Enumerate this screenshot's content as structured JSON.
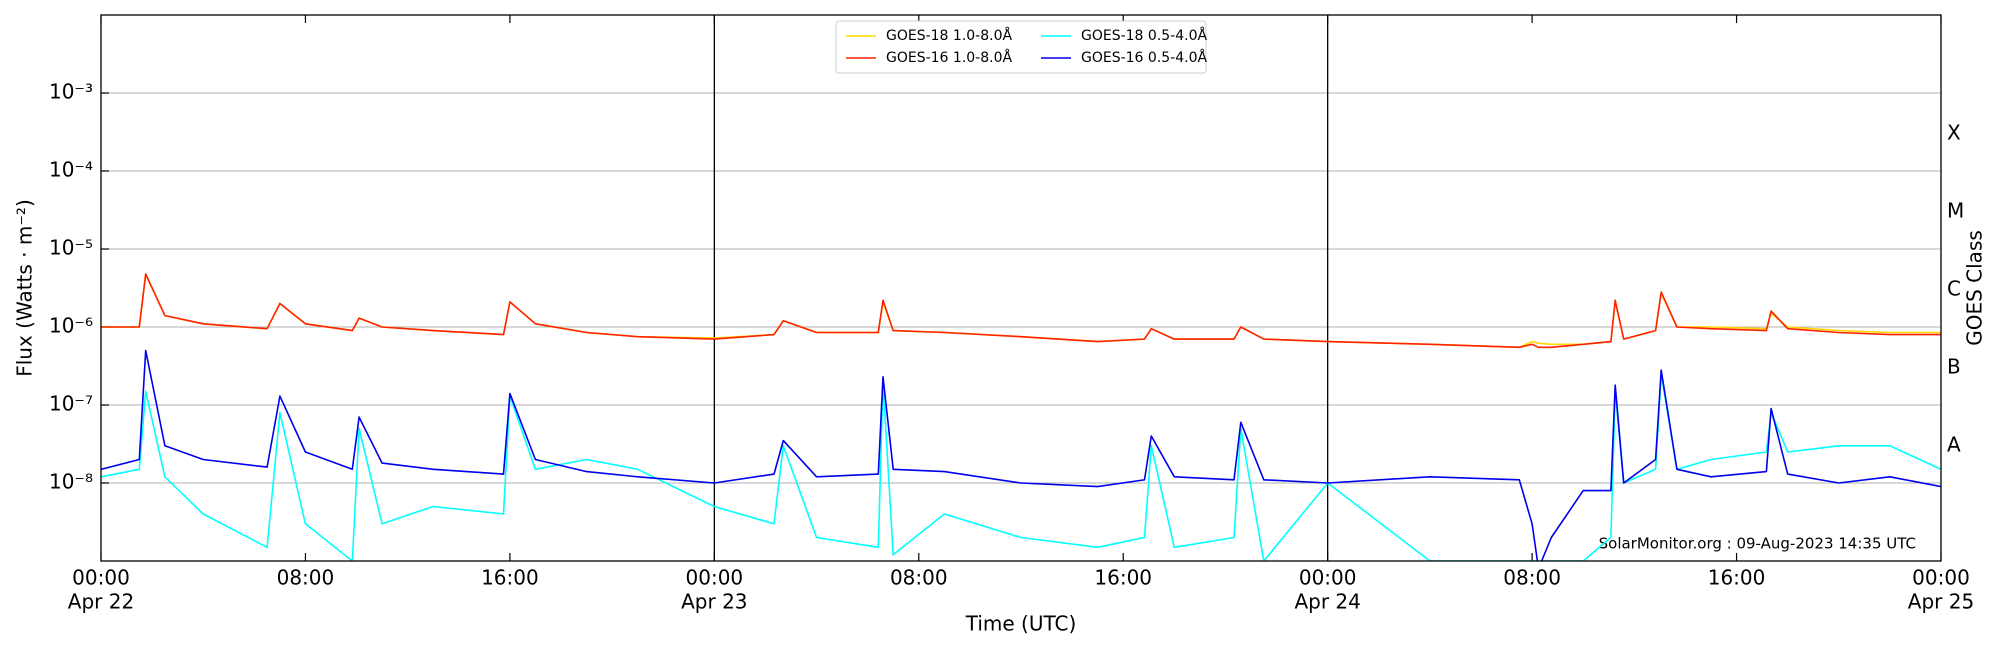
{
  "chart_data": {
    "type": "line",
    "xlabel": "Time (UTC)",
    "ylabel": "Flux (Watts · m⁻²)",
    "y2label": "GOES Class",
    "annotation": "SolarMonitor.org : 09-Aug-2023 14:35 UTC",
    "log_y": true,
    "grid": true,
    "legend_loc": "upper center",
    "xlim": [
      "Apr 22 00:00",
      "Apr 25 00:00"
    ],
    "xticks": [
      {
        "value": "Apr 22 00:00",
        "label": [
          "00:00",
          "Apr 22"
        ]
      },
      {
        "value": "Apr 22 08:00",
        "label": [
          "08:00"
        ]
      },
      {
        "value": "Apr 22 16:00",
        "label": [
          "16:00"
        ]
      },
      {
        "value": "Apr 23 00:00",
        "label": [
          "00:00",
          "Apr 23"
        ]
      },
      {
        "value": "Apr 23 08:00",
        "label": [
          "08:00"
        ]
      },
      {
        "value": "Apr 23 16:00",
        "label": [
          "16:00"
        ]
      },
      {
        "value": "Apr 24 00:00",
        "label": [
          "00:00",
          "Apr 24"
        ]
      },
      {
        "value": "Apr 24 08:00",
        "label": [
          "08:00"
        ]
      },
      {
        "value": "Apr 24 16:00",
        "label": [
          "16:00"
        ]
      },
      {
        "value": "Apr 25 00:00",
        "label": [
          "00:00",
          "Apr 25"
        ]
      }
    ],
    "ylim": [
      1e-09,
      0.01
    ],
    "yticks": [
      {
        "value": 1e-08,
        "label": "10⁻⁸"
      },
      {
        "value": 1e-07,
        "label": "10⁻⁷"
      },
      {
        "value": 1e-06,
        "label": "10⁻⁶"
      },
      {
        "value": 1e-05,
        "label": "10⁻⁵"
      },
      {
        "value": 0.0001,
        "label": "10⁻⁴"
      },
      {
        "value": 0.001,
        "label": "10⁻³"
      }
    ],
    "y2lim": [
      1e-09,
      0.01
    ],
    "y2ticks": [
      {
        "value": 3e-08,
        "label": "A"
      },
      {
        "value": 3e-07,
        "label": "B"
      },
      {
        "value": 3e-06,
        "label": "C"
      },
      {
        "value": 3e-05,
        "label": "M"
      },
      {
        "value": 0.0003,
        "label": "X"
      }
    ],
    "x": [
      "Apr 22 00:00",
      "Apr 22 01:30",
      "Apr 22 01:45",
      "Apr 22 02:30",
      "Apr 22 04:00",
      "Apr 22 06:30",
      "Apr 22 07:00",
      "Apr 22 08:00",
      "Apr 22 09:50",
      "Apr 22 10:06",
      "Apr 22 11:00",
      "Apr 22 13:00",
      "Apr 22 15:45",
      "Apr 22 16:00",
      "Apr 22 17:00",
      "Apr 22 19:00",
      "Apr 22 21:00",
      "Apr 23 00:00",
      "Apr 23 02:20",
      "Apr 23 02:42",
      "Apr 23 04:00",
      "Apr 23 06:25",
      "Apr 23 06:36",
      "Apr 23 07:00",
      "Apr 23 09:00",
      "Apr 23 12:00",
      "Apr 23 15:00",
      "Apr 23 16:50",
      "Apr 23 17:06",
      "Apr 23 18:00",
      "Apr 23 20:20",
      "Apr 23 20:36",
      "Apr 23 21:30",
      "Apr 24 00:00",
      "Apr 24 04:00",
      "Apr 24 07:30",
      "Apr 24 08:00",
      "Apr 24 08:15",
      "Apr 24 08:45",
      "Apr 24 10:00",
      "Apr 24 11:05",
      "Apr 24 11:15",
      "Apr 24 11:35",
      "Apr 24 12:50",
      "Apr 24 13:03",
      "Apr 24 13:40",
      "Apr 24 15:00",
      "Apr 24 17:10",
      "Apr 24 17:21",
      "Apr 24 18:00",
      "Apr 24 20:00",
      "Apr 24 22:00",
      "Apr 25 00:00"
    ],
    "series": [
      {
        "name": "GOES-18 1.0-8.0Å",
        "color": "#ffd700",
        "values": [
          1e-06,
          1e-06,
          4.7e-06,
          1.4e-06,
          1.1e-06,
          9.5e-07,
          2e-06,
          1.1e-06,
          9e-07,
          1.3e-06,
          1e-06,
          9e-07,
          8e-07,
          2.1e-06,
          1.1e-06,
          8.5e-07,
          7.5e-07,
          7.2e-07,
          8e-07,
          1.2e-06,
          8.5e-07,
          8.5e-07,
          2.1e-06,
          9e-07,
          8.5e-07,
          7.5e-07,
          6.5e-07,
          7e-07,
          9.5e-07,
          7e-07,
          7e-07,
          1e-06,
          7e-07,
          6.5e-07,
          6e-07,
          5.5e-07,
          6.5e-07,
          6.2e-07,
          6e-07,
          6e-07,
          6.5e-07,
          2.1e-06,
          7e-07,
          9e-07,
          2.7e-06,
          1e-06,
          1e-06,
          9.5e-07,
          1.5e-06,
          1e-06,
          9e-07,
          8.5e-07,
          8.5e-07
        ]
      },
      {
        "name": "GOES-16 1.0-8.0Å",
        "color": "#ff2200",
        "values": [
          1e-06,
          1e-06,
          4.8e-06,
          1.4e-06,
          1.1e-06,
          9.5e-07,
          2e-06,
          1.1e-06,
          9e-07,
          1.3e-06,
          1e-06,
          9e-07,
          8e-07,
          2.1e-06,
          1.1e-06,
          8.5e-07,
          7.5e-07,
          7e-07,
          8e-07,
          1.2e-06,
          8.5e-07,
          8.5e-07,
          2.2e-06,
          9e-07,
          8.5e-07,
          7.5e-07,
          6.5e-07,
          7e-07,
          9.5e-07,
          7e-07,
          7e-07,
          1e-06,
          7e-07,
          6.5e-07,
          6e-07,
          5.5e-07,
          6e-07,
          5.5e-07,
          5.5e-07,
          6e-07,
          6.5e-07,
          2.2e-06,
          7e-07,
          9e-07,
          2.8e-06,
          1e-06,
          9.5e-07,
          9e-07,
          1.6e-06,
          9.5e-07,
          8.5e-07,
          8e-07,
          8e-07
        ]
      },
      {
        "name": "GOES-18 0.5-4.0Å",
        "color": "#00ffff",
        "values": [
          1.2e-08,
          1.5e-08,
          1.5e-07,
          1.2e-08,
          4e-09,
          1.5e-09,
          8e-08,
          3e-09,
          1e-09,
          5e-08,
          3e-09,
          5e-09,
          4e-09,
          1.3e-07,
          1.5e-08,
          2e-08,
          1.5e-08,
          5e-09,
          3e-09,
          3e-08,
          2e-09,
          1.5e-09,
          2e-07,
          1.2e-09,
          4e-09,
          2e-09,
          1.5e-09,
          2e-09,
          3e-08,
          1.5e-09,
          2e-09,
          5e-08,
          1e-09,
          1e-08,
          1e-09,
          1e-09,
          1e-09,
          1e-09,
          1e-09,
          1e-09,
          2e-09,
          1.5e-07,
          1e-08,
          1.5e-08,
          2.5e-07,
          1.5e-08,
          2e-08,
          2.5e-08,
          8e-08,
          2.5e-08,
          3e-08,
          3e-08,
          1.5e-08
        ]
      },
      {
        "name": "GOES-16 0.5-4.0Å",
        "color": "#0000ee",
        "values": [
          1.5e-08,
          2e-08,
          5e-07,
          3e-08,
          2e-08,
          1.6e-08,
          1.3e-07,
          2.5e-08,
          1.5e-08,
          7e-08,
          1.8e-08,
          1.5e-08,
          1.3e-08,
          1.4e-07,
          2e-08,
          1.4e-08,
          1.2e-08,
          1e-08,
          1.3e-08,
          3.5e-08,
          1.2e-08,
          1.3e-08,
          2.3e-07,
          1.5e-08,
          1.4e-08,
          1e-08,
          9e-09,
          1.1e-08,
          4e-08,
          1.2e-08,
          1.1e-08,
          6e-08,
          1.1e-08,
          1e-08,
          1.2e-08,
          1.1e-08,
          3e-09,
          8e-10,
          2e-09,
          8e-09,
          8e-09,
          1.8e-07,
          1e-08,
          2e-08,
          2.8e-07,
          1.5e-08,
          1.2e-08,
          1.4e-08,
          9e-08,
          1.3e-08,
          1e-08,
          1.2e-08,
          9e-09
        ]
      }
    ]
  }
}
